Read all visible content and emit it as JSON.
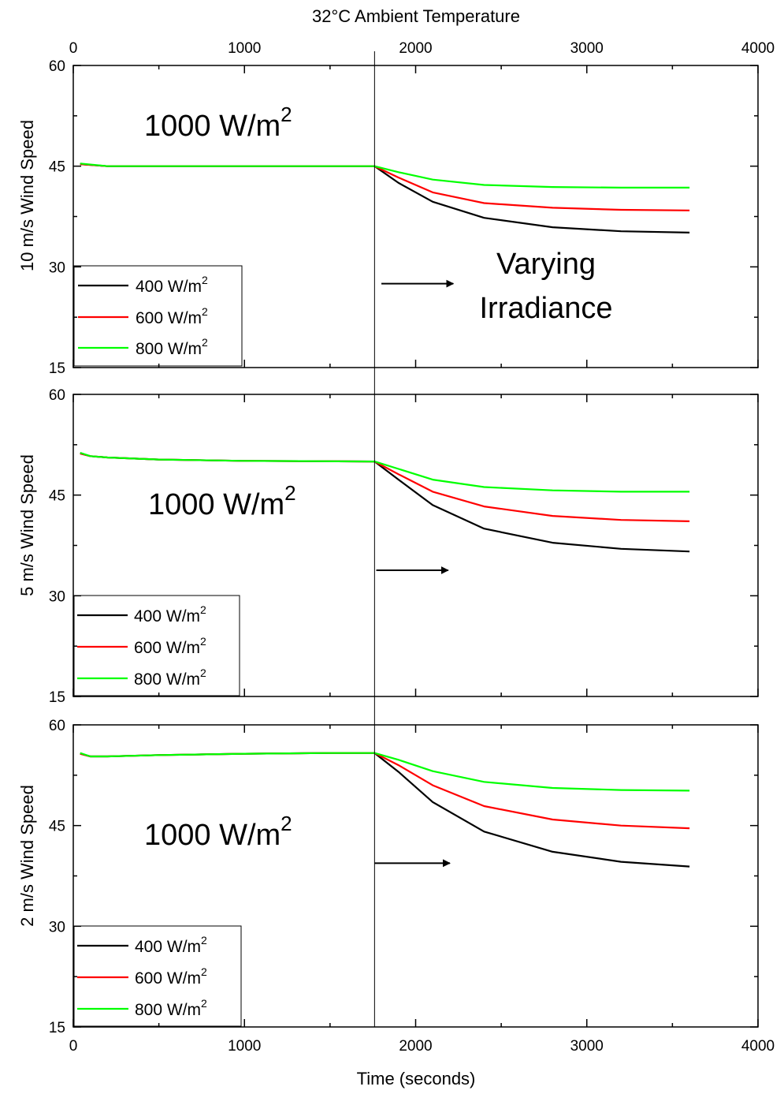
{
  "chart_data": [
    {
      "type": "line",
      "top_title": "32°C Ambient Temperature",
      "ylabel": "10 m/s Wind Speed",
      "xlabel": "",
      "xlim": [
        0,
        4000
      ],
      "ylim": [
        15,
        60
      ],
      "x_ticks": [
        "0",
        "1000",
        "2000",
        "3000",
        "4000"
      ],
      "y_ticks": [
        "15",
        "30",
        "45",
        "60"
      ],
      "top_x_ticks": [
        "0",
        "1000",
        "2000",
        "3000",
        "4000"
      ],
      "annotation_main": "1000 W/m",
      "annotation_main_sup": "2",
      "annotation_side": [
        "Varying",
        "Irradiance"
      ],
      "arrow": {
        "x_start": 1800,
        "x_end": 2220,
        "y": 27.5
      },
      "switch_time": 1760,
      "series": [
        {
          "name": "400 W/m²",
          "legend_base": "400 W/m",
          "legend_sup": "2",
          "color": "#000000",
          "x": [
            40,
            200,
            1000,
            1760,
            1900,
            2100,
            2400,
            2800,
            3200,
            3600
          ],
          "y": [
            45.3,
            45.0,
            45.0,
            45.0,
            42.5,
            39.7,
            37.3,
            35.9,
            35.3,
            35.1
          ]
        },
        {
          "name": "600 W/m²",
          "legend_base": "600 W/m",
          "legend_sup": "2",
          "color": "#ff0000",
          "x": [
            40,
            200,
            1000,
            1760,
            1900,
            2100,
            2400,
            2800,
            3200,
            3600
          ],
          "y": [
            45.3,
            45.0,
            45.0,
            45.0,
            43.3,
            41.1,
            39.5,
            38.8,
            38.5,
            38.4
          ]
        },
        {
          "name": "800 W/m²",
          "legend_base": "800 W/m",
          "legend_sup": "2",
          "color": "#00ff00",
          "x": [
            40,
            200,
            1000,
            1760,
            1900,
            2100,
            2400,
            2800,
            3200,
            3600
          ],
          "y": [
            45.4,
            45.0,
            45.0,
            45.0,
            44.1,
            43.0,
            42.2,
            41.9,
            41.8,
            41.8
          ]
        }
      ]
    },
    {
      "type": "line",
      "ylabel": "5 m/s Wind Speed",
      "xlabel": "",
      "xlim": [
        0,
        4000
      ],
      "ylim": [
        15,
        60
      ],
      "x_ticks": [
        "0",
        "1000",
        "2000",
        "3000",
        "4000"
      ],
      "y_ticks": [
        "15",
        "30",
        "45",
        "60"
      ],
      "annotation_main": "1000 W/m",
      "annotation_main_sup": "2",
      "arrow": {
        "x_start": 1770,
        "x_end": 2190,
        "y": 33.8
      },
      "switch_time": 1760,
      "series": [
        {
          "name": "400 W/m²",
          "legend_base": "400 W/m",
          "legend_sup": "2",
          "color": "#000000",
          "x": [
            40,
            100,
            200,
            500,
            1000,
            1760,
            1900,
            2100,
            2400,
            2800,
            3200,
            3600
          ],
          "y": [
            51.2,
            50.8,
            50.6,
            50.3,
            50.1,
            50.0,
            47.3,
            43.5,
            40.0,
            37.9,
            37.0,
            36.6
          ]
        },
        {
          "name": "600 W/m²",
          "legend_base": "600 W/m",
          "legend_sup": "2",
          "color": "#ff0000",
          "x": [
            40,
            100,
            200,
            500,
            1000,
            1760,
            1900,
            2100,
            2400,
            2800,
            3200,
            3600
          ],
          "y": [
            51.2,
            50.8,
            50.6,
            50.3,
            50.1,
            50.0,
            48.1,
            45.5,
            43.3,
            41.9,
            41.3,
            41.1
          ]
        },
        {
          "name": "800 W/m²",
          "legend_base": "800 W/m",
          "legend_sup": "2",
          "color": "#00ff00",
          "x": [
            40,
            100,
            200,
            500,
            1000,
            1760,
            1900,
            2100,
            2400,
            2800,
            3200,
            3600
          ],
          "y": [
            51.3,
            50.8,
            50.6,
            50.3,
            50.1,
            50.0,
            48.9,
            47.3,
            46.2,
            45.7,
            45.5,
            45.5
          ]
        }
      ]
    },
    {
      "type": "line",
      "ylabel": "2 m/s Wind Speed",
      "xlabel": "Time (seconds)",
      "xlim": [
        0,
        4000
      ],
      "ylim": [
        15,
        60
      ],
      "x_ticks": [
        "0",
        "1000",
        "2000",
        "3000",
        "4000"
      ],
      "y_ticks": [
        "15",
        "30",
        "45",
        "60"
      ],
      "annotation_main": "1000 W/m",
      "annotation_main_sup": "2",
      "arrow": {
        "x_start": 1760,
        "x_end": 2200,
        "y": 39.4
      },
      "switch_time": 1760,
      "series": [
        {
          "name": "400 W/m²",
          "legend_base": "400 W/m",
          "legend_sup": "2",
          "color": "#000000",
          "x": [
            40,
            100,
            200,
            500,
            1000,
            1500,
            1760,
            1900,
            2100,
            2400,
            2800,
            3200,
            3600
          ],
          "y": [
            55.7,
            55.3,
            55.3,
            55.5,
            55.7,
            55.8,
            55.8,
            53.0,
            48.5,
            44.1,
            41.1,
            39.6,
            38.9
          ]
        },
        {
          "name": "600 W/m²",
          "legend_base": "600 W/m",
          "legend_sup": "2",
          "color": "#ff0000",
          "x": [
            40,
            100,
            200,
            500,
            1000,
            1500,
            1760,
            1900,
            2100,
            2400,
            2800,
            3200,
            3600
          ],
          "y": [
            55.7,
            55.3,
            55.3,
            55.5,
            55.7,
            55.8,
            55.8,
            54.0,
            51.0,
            47.9,
            45.9,
            45.0,
            44.6
          ]
        },
        {
          "name": "800 W/m²",
          "legend_base": "800 W/m",
          "legend_sup": "2",
          "color": "#00ff00",
          "x": [
            40,
            100,
            200,
            500,
            1000,
            1500,
            1760,
            1900,
            2100,
            2400,
            2800,
            3200,
            3600
          ],
          "y": [
            55.8,
            55.3,
            55.3,
            55.5,
            55.7,
            55.8,
            55.8,
            54.8,
            53.1,
            51.5,
            50.6,
            50.3,
            50.2
          ]
        }
      ]
    }
  ]
}
